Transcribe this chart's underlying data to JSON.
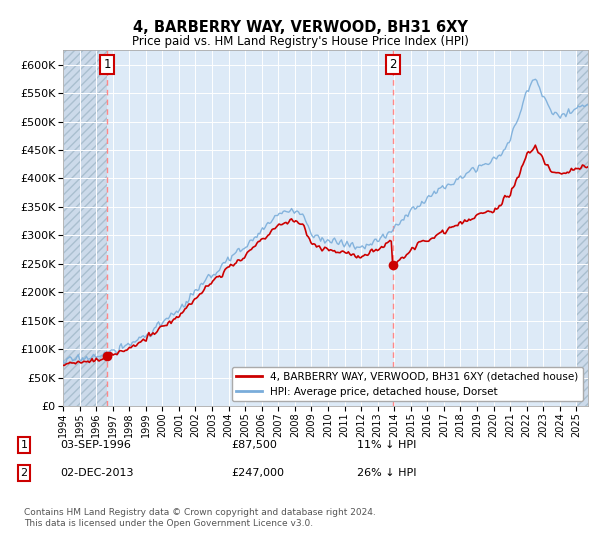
{
  "title": "4, BARBERRY WAY, VERWOOD, BH31 6XY",
  "subtitle": "Price paid vs. HM Land Registry's House Price Index (HPI)",
  "ylabel_ticks": [
    0,
    50000,
    100000,
    150000,
    200000,
    250000,
    300000,
    350000,
    400000,
    450000,
    500000,
    550000,
    600000
  ],
  "ylim": [
    0,
    625000
  ],
  "xlim_start": 1994.0,
  "xlim_end": 2025.7,
  "sale1_date": 1996.67,
  "sale1_price": 87500,
  "sale2_date": 2013.917,
  "sale2_price": 247000,
  "line_color_property": "#cc0000",
  "line_color_hpi": "#7aadda",
  "marker_color": "#cc0000",
  "vline_color": "#ff8888",
  "background_plot": "#ddeaf7",
  "background_hatch_color": "#ccdaea",
  "legend_label_property": "4, BARBERRY WAY, VERWOOD, BH31 6XY (detached house)",
  "legend_label_hpi": "HPI: Average price, detached house, Dorset",
  "footnote": "Contains HM Land Registry data © Crown copyright and database right 2024.\nThis data is licensed under the Open Government Licence v3.0.",
  "annotation1_label": "1",
  "annotation1_date": "03-SEP-1996",
  "annotation1_price": "£87,500",
  "annotation1_hpi": "11% ↓ HPI",
  "annotation2_label": "2",
  "annotation2_date": "02-DEC-2013",
  "annotation2_price": "£247,000",
  "annotation2_hpi": "26% ↓ HPI"
}
